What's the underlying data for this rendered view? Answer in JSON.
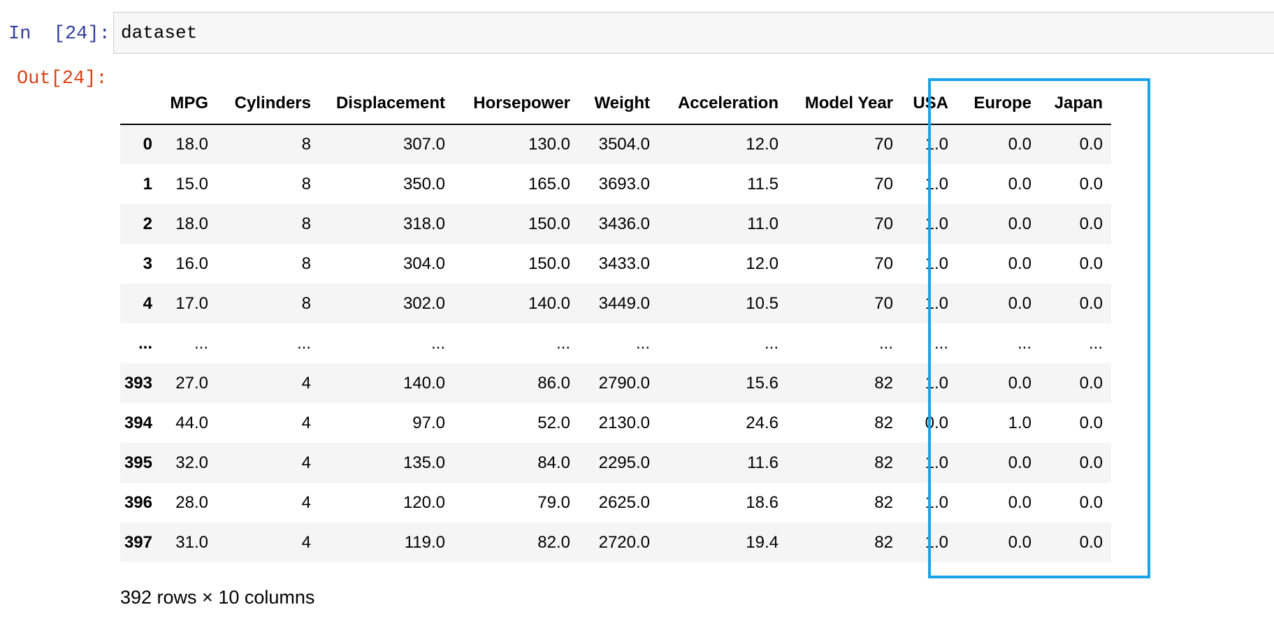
{
  "cell": {
    "in_prompt": "In  [24]:",
    "out_prompt": "Out[24]:",
    "code": "dataset"
  },
  "table": {
    "columns": [
      "MPG",
      "Cylinders",
      "Displacement",
      "Horsepower",
      "Weight",
      "Acceleration",
      "Model Year",
      "USA",
      "Europe",
      "Japan"
    ],
    "rows": [
      {
        "index": "0",
        "cells": [
          "18.0",
          "8",
          "307.0",
          "130.0",
          "3504.0",
          "12.0",
          "70",
          "1.0",
          "0.0",
          "0.0"
        ]
      },
      {
        "index": "1",
        "cells": [
          "15.0",
          "8",
          "350.0",
          "165.0",
          "3693.0",
          "11.5",
          "70",
          "1.0",
          "0.0",
          "0.0"
        ]
      },
      {
        "index": "2",
        "cells": [
          "18.0",
          "8",
          "318.0",
          "150.0",
          "3436.0",
          "11.0",
          "70",
          "1.0",
          "0.0",
          "0.0"
        ]
      },
      {
        "index": "3",
        "cells": [
          "16.0",
          "8",
          "304.0",
          "150.0",
          "3433.0",
          "12.0",
          "70",
          "1.0",
          "0.0",
          "0.0"
        ]
      },
      {
        "index": "4",
        "cells": [
          "17.0",
          "8",
          "302.0",
          "140.0",
          "3449.0",
          "10.5",
          "70",
          "1.0",
          "0.0",
          "0.0"
        ]
      },
      {
        "index": "...",
        "cells": [
          "...",
          "...",
          "...",
          "...",
          "...",
          "...",
          "...",
          "...",
          "...",
          "..."
        ]
      },
      {
        "index": "393",
        "cells": [
          "27.0",
          "4",
          "140.0",
          "86.0",
          "2790.0",
          "15.6",
          "82",
          "1.0",
          "0.0",
          "0.0"
        ]
      },
      {
        "index": "394",
        "cells": [
          "44.0",
          "4",
          "97.0",
          "52.0",
          "2130.0",
          "24.6",
          "82",
          "0.0",
          "1.0",
          "0.0"
        ]
      },
      {
        "index": "395",
        "cells": [
          "32.0",
          "4",
          "135.0",
          "84.0",
          "2295.0",
          "11.6",
          "82",
          "1.0",
          "0.0",
          "0.0"
        ]
      },
      {
        "index": "396",
        "cells": [
          "28.0",
          "4",
          "120.0",
          "79.0",
          "2625.0",
          "18.6",
          "82",
          "1.0",
          "0.0",
          "0.0"
        ]
      },
      {
        "index": "397",
        "cells": [
          "31.0",
          "4",
          "119.0",
          "82.0",
          "2720.0",
          "19.4",
          "82",
          "1.0",
          "0.0",
          "0.0"
        ]
      }
    ],
    "shape_note": "392 rows × 10 columns"
  },
  "colors": {
    "in_prompt": "#303f9f",
    "out_prompt": "#d84315",
    "highlight_box": "#1aa3e8",
    "row_stripe": "#f5f5f5"
  }
}
